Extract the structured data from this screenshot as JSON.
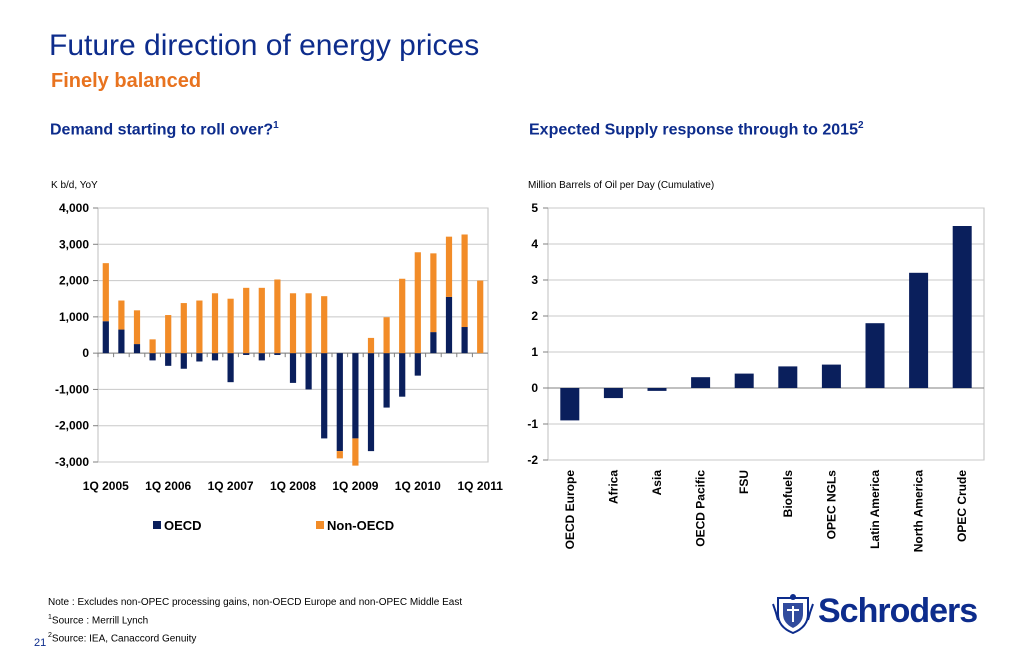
{
  "page": {
    "title": "Future direction of energy prices",
    "subtitle": "Finely balanced",
    "page_number": "21",
    "brand": "Schroders"
  },
  "notes": {
    "note": "Note : Excludes non-OPEC processing gains, non-OECD Europe and non-OPEC Middle East",
    "source1_marker": "1",
    "source1": "Source : Merrill Lynch",
    "source2_marker": "2",
    "source2": "Source: IEA, Canaccord Genuity"
  },
  "colors": {
    "oecd": "#0a1f5c",
    "non_oecd": "#f28c28",
    "gridline": "#c8c8c8",
    "title": "#0d2c8c",
    "subtitle": "#e8731f"
  },
  "chart_data": [
    {
      "type": "bar",
      "stacked": true,
      "heading": "Demand starting to roll over?",
      "heading_marker": "1",
      "ylabel": "K b/d, YoY",
      "ylim": [
        -3000,
        4000
      ],
      "yticks": [
        -3000,
        -2000,
        -1000,
        0,
        1000,
        2000,
        3000,
        4000
      ],
      "ytick_labels": [
        "-3,000",
        "-2,000",
        "-1,000",
        "0",
        "1,000",
        "2,000",
        "3,000",
        "4,000"
      ],
      "categories": [
        "1Q 2005",
        "2Q 2005",
        "3Q 2005",
        "4Q 2005",
        "1Q 2006",
        "2Q 2006",
        "3Q 2006",
        "4Q 2006",
        "1Q 2007",
        "2Q 2007",
        "3Q 2007",
        "4Q 2007",
        "1Q 2008",
        "2Q 2008",
        "3Q 2008",
        "4Q 2008",
        "1Q 2009",
        "2Q 2009",
        "3Q 2009",
        "4Q 2009",
        "1Q 2010",
        "2Q 2010",
        "3Q 2010",
        "4Q 2010",
        "1Q 2011"
      ],
      "xtick_labels": [
        "1Q 2005",
        "1Q 2006",
        "1Q 2007",
        "1Q 2008",
        "1Q 2009",
        "1Q 2010",
        "1Q 2011"
      ],
      "xtick_indices": [
        0,
        4,
        8,
        12,
        16,
        20,
        24
      ],
      "grid": true,
      "legend_position": "bottom",
      "series": [
        {
          "name": "OECD",
          "values": [
            880,
            650,
            250,
            -200,
            -350,
            -430,
            -230,
            -200,
            -800,
            -50,
            -200,
            -50,
            -820,
            -1000,
            -2350,
            -2700,
            -2350,
            -2700,
            -1500,
            -1200,
            -620,
            580,
            1550,
            720,
            0
          ]
        },
        {
          "name": "Non-OECD",
          "values": [
            1600,
            800,
            930,
            380,
            1050,
            1380,
            1450,
            1650,
            1500,
            1800,
            1800,
            2030,
            1650,
            1650,
            1570,
            -200,
            -750,
            420,
            990,
            2050,
            2780,
            2170,
            1660,
            2550,
            2000
          ]
        }
      ]
    },
    {
      "type": "bar",
      "heading": "Expected Supply response through to 2015",
      "heading_marker": "2",
      "ylabel": "Million Barrels of Oil per Day (Cumulative)",
      "ylim": [
        -2,
        5
      ],
      "yticks": [
        -2,
        -1,
        0,
        1,
        2,
        3,
        4,
        5
      ],
      "ytick_labels": [
        "-2",
        "-1",
        "0",
        "1",
        "2",
        "3",
        "4",
        "5"
      ],
      "categories": [
        "OECD Europe",
        "Africa",
        "Asia",
        "OECD Pacific",
        "FSU",
        "Biofuels",
        "OPEC NGLs",
        "Latin America",
        "North America",
        "OPEC Crude"
      ],
      "values": [
        -0.9,
        -0.28,
        -0.08,
        0.3,
        0.4,
        0.6,
        0.65,
        1.8,
        3.2,
        4.5
      ],
      "grid": true
    }
  ]
}
